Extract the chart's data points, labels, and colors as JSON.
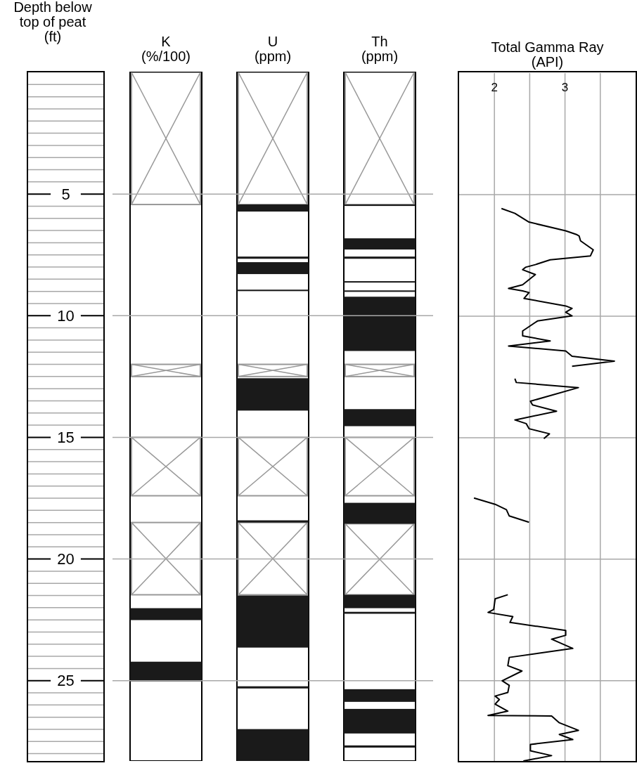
{
  "chart_data": [
    {
      "type": "bar",
      "ylabel": "Depth below\ntop of peat\n(ft)",
      "ylim": [
        28.3,
        0
      ],
      "grid": "y",
      "categories": [
        "K\n(%/100)",
        "U\n(ppm)",
        "Th\n(ppm)"
      ],
      "yticks": [
        5,
        10,
        15,
        20,
        25
      ],
      "series": [
        {
          "color": "#999999",
          "line_style": "solid",
          "base": [
            0,
            0,
            0
          ],
          "values": [
            5.43,
            5.43,
            5.43
          ]
        },
        {
          "color": "#999999",
          "line_style": "solid",
          "base": [
            12.0,
            12.0,
            12.0
          ],
          "values": [
            0.5,
            0.5,
            0.5
          ]
        },
        {
          "color": "#999999",
          "line_style": "solid",
          "base": [
            15.0,
            15.0,
            15.0
          ],
          "values": [
            2.4,
            2.4,
            2.4
          ]
        },
        {
          "color": "#999999",
          "line_style": "solid",
          "base": [
            18.5,
            18.5,
            18.55
          ],
          "values": [
            2.97,
            2.97,
            2.92
          ]
        },
        {
          "color": "#1a1a1a",
          "base": [
            22.02,
            5.43,
            5.43
          ],
          "values": [
            0.49,
            0.29,
            0.06
          ]
        },
        {
          "color": "#1a1a1a",
          "base": [
            24.22,
            7.57,
            6.82
          ],
          "values": [
            0.81,
            0.09,
            0.46
          ]
        },
        {
          "color": "#1a1a1a",
          "base": [
            null,
            7.8,
            7.57
          ],
          "values": [
            null,
            0.49,
            0.09
          ]
        },
        {
          "color": "#1a1a1a",
          "base": [
            null,
            8.93,
            8.58
          ],
          "values": [
            null,
            0.06,
            0.06
          ]
        },
        {
          "color": "#1a1a1a",
          "base": [
            null,
            12.57,
            8.96
          ],
          "values": [
            null,
            1.33,
            0.06
          ]
        },
        {
          "color": "#1a1a1a",
          "base": [
            null,
            18.41,
            9.22
          ],
          "values": [
            null,
            0.09,
            2.23
          ]
        },
        {
          "color": "#1a1a1a",
          "base": [
            null,
            21.5,
            13.84
          ],
          "values": [
            null,
            2.14,
            0.7
          ]
        },
        {
          "color": "#1a1a1a",
          "base": [
            null,
            25.23,
            17.69
          ],
          "values": [
            null,
            0.09,
            0.86
          ]
        },
        {
          "color": "#1a1a1a",
          "base": [
            null,
            26.99,
            21.47
          ],
          "values": [
            null,
            1.31,
            0.55
          ]
        },
        {
          "color": "#1a1a1a",
          "base": [
            null,
            null,
            22.17
          ],
          "values": [
            null,
            null,
            0.08
          ]
        },
        {
          "color": "#1a1a1a",
          "base": [
            null,
            null,
            25.35
          ],
          "values": [
            null,
            null,
            0.52
          ]
        },
        {
          "color": "#1a1a1a",
          "base": [
            null,
            null,
            26.16
          ],
          "values": [
            null,
            null,
            1.01
          ]
        },
        {
          "color": "#1a1a1a",
          "base": [
            null,
            null,
            27.66
          ],
          "values": [
            null,
            null,
            0.09
          ]
        }
      ]
    },
    {
      "type": "line",
      "title": "Total Gamma Ray\n(API)",
      "orientation": "horizontal",
      "color": "#000000",
      "xlim": [
        1.5,
        4.0
      ],
      "xticks": [
        2,
        {
          "value": 2.5,
          "label": null
        },
        3,
        {
          "value": 3.5,
          "label": null
        }
      ],
      "ylim": [
        28.3,
        0
      ],
      "yticks": [
        5,
        10,
        15,
        20,
        25
      ],
      "tick_labels": "x",
      "grid": true,
      "x": [
        5.57,
        5.77,
        6.13,
        6.49,
        6.65,
        6.7,
        6.9,
        7.27,
        7.52,
        7.68,
        7.88,
        7.99,
        8.09,
        8.29,
        8.71,
        8.86,
        8.96,
        9.03,
        9.27,
        9.58,
        9.68,
        9.84,
        9.99,
        10.2,
        10.61,
        10.81,
        11.02,
        11.23,
        11.43,
        11.65,
        11.85,
        12.06,
        12.3,
        12.57,
        12.73,
        12.94,
        13.5,
        13.65,
        13.91,
        14.27,
        14.42,
        14.63,
        14.84,
        15.04,
        16.0,
        17.48,
        17.74,
        17.96,
        18.22,
        18.48,
        20.0,
        21.46,
        21.63,
        22.07,
        22.19,
        22.36,
        22.6,
        22.93,
        23.13,
        23.29,
        23.67,
        24.04,
        24.38,
        24.6,
        25.0,
        25.19,
        25.48,
        25.63,
        25.77,
        25.96,
        26.25,
        26.43,
        26.45,
        26.73,
        27.04,
        27.21,
        27.42,
        27.62,
        27.88,
        28.08,
        28.3
      ],
      "values": [
        2.1,
        2.29,
        2.49,
        3.01,
        3.17,
        3.2,
        3.22,
        3.4,
        3.36,
        2.79,
        2.58,
        2.44,
        2.4,
        2.58,
        2.4,
        2.2,
        2.4,
        2.49,
        2.42,
        3.01,
        3.1,
        3.01,
        3.1,
        2.61,
        2.4,
        2.4,
        2.79,
        2.2,
        3.01,
        3.1,
        3.7,
        3.1,
        null,
        2.29,
        2.31,
        3.19,
        2.51,
        2.54,
        2.88,
        2.29,
        2.45,
        2.49,
        2.78,
        2.7,
        null,
        1.71,
        2.01,
        2.17,
        2.21,
        2.49,
        null,
        2.19,
        2.01,
        1.99,
        1.91,
        2.26,
        2.22,
        3.01,
        3.01,
        2.81,
        3.11,
        2.21,
        2.19,
        2.39,
        2.11,
        2.21,
        2.19,
        2.01,
        2.07,
        2.01,
        2.19,
        1.91,
        2.81,
        2.92,
        3.19,
        2.92,
        3.11,
        2.51,
        2.51,
        2.81,
        2.41
      ]
    }
  ]
}
